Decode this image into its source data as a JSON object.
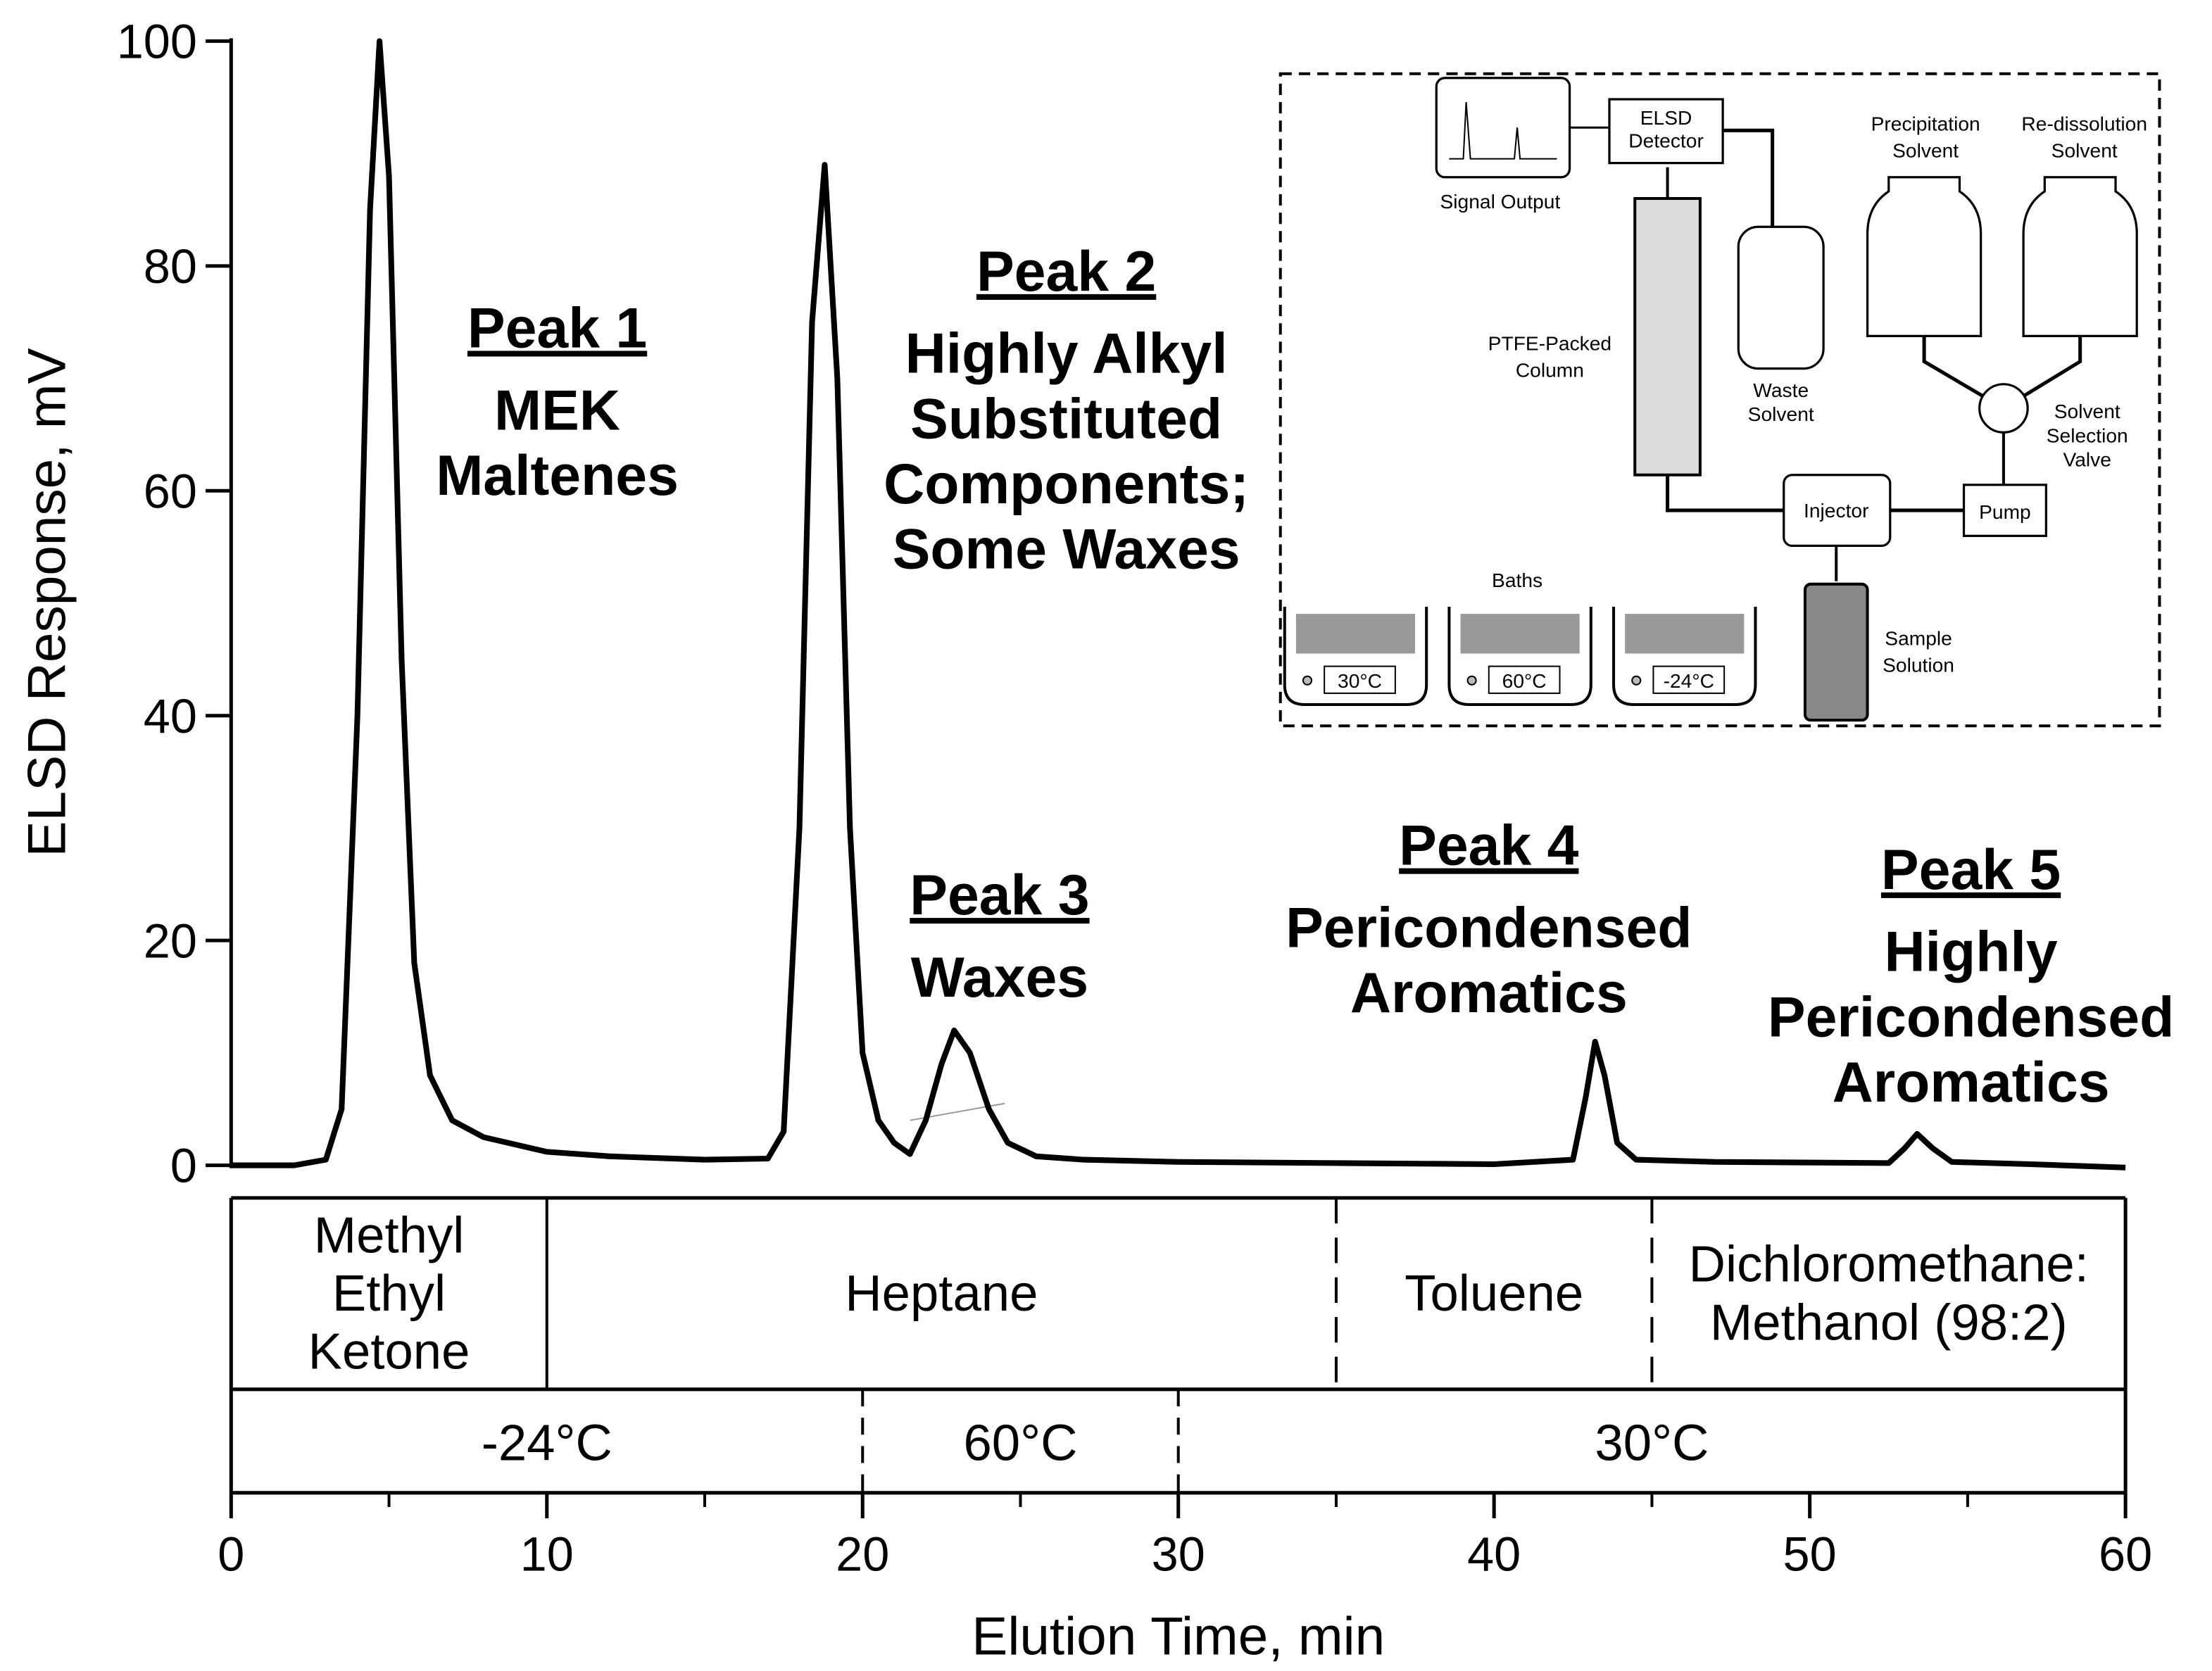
{
  "chart_data": {
    "type": "line",
    "y_label": "ELSD Response, mV",
    "x_label": "Elution Time, min",
    "xlim": [
      0,
      60
    ],
    "xticks": [
      0,
      10,
      20,
      30,
      40,
      50,
      60
    ],
    "xminorticks": [
      5,
      15,
      25,
      35,
      45,
      55
    ],
    "ylim": [
      0,
      100
    ],
    "yticks": [
      0,
      20,
      40,
      60,
      80,
      100
    ],
    "color": "#000000",
    "x": [
      0,
      2,
      3,
      3.5,
      4,
      4.4,
      4.7,
      5.0,
      5.4,
      5.8,
      6.3,
      7,
      8,
      10,
      12,
      15,
      17,
      17.5,
      18,
      18.4,
      18.8,
      19.2,
      19.6,
      20,
      20.5,
      21,
      21.5,
      22,
      22.5,
      22.9,
      23.4,
      24,
      24.6,
      25.5,
      27,
      30,
      35,
      40,
      42.5,
      42.9,
      43.2,
      43.5,
      43.9,
      44.5,
      47,
      52.5,
      53,
      53.4,
      53.9,
      54.5,
      57,
      60
    ],
    "values": [
      0,
      0,
      0.5,
      5,
      40,
      85,
      100,
      88,
      45,
      18,
      8,
      4,
      2.5,
      1.2,
      0.8,
      0.5,
      0.6,
      3,
      30,
      75,
      89,
      70,
      30,
      10,
      4,
      2,
      1,
      4,
      9,
      12,
      10,
      5,
      2,
      0.8,
      0.5,
      0.3,
      0.2,
      0.1,
      0.5,
      6,
      11,
      8,
      2,
      0.5,
      0.3,
      0.2,
      1.5,
      2.8,
      1.5,
      0.3,
      0.1,
      -0.2
    ],
    "annotations": [
      {
        "title": "Peak 1",
        "lines": [
          "MEK",
          "Maltenes"
        ]
      },
      {
        "title": "Peak 2",
        "lines": [
          "Highly Alkyl",
          "Substituted",
          "Components;",
          "Some Waxes"
        ]
      },
      {
        "title": "Peak 3",
        "lines": [
          "Waxes"
        ]
      },
      {
        "title": "Peak 4",
        "lines": [
          "Pericondensed",
          "Aromatics"
        ]
      },
      {
        "title": "Peak 5",
        "lines": [
          "Highly",
          "Pericondensed",
          "Aromatics"
        ]
      }
    ],
    "solvent_boundaries": [
      10,
      35,
      45
    ],
    "solvents": [
      [
        "Methyl",
        "Ethyl",
        "Ketone"
      ],
      [
        "Heptane"
      ],
      [
        "Toluene"
      ],
      [
        "Dichloromethane:",
        "Methanol (98:2)"
      ]
    ],
    "temperature_boundaries": [
      20,
      30
    ],
    "temperatures": [
      "-24°C",
      "60°C",
      "30°C"
    ],
    "inset": {
      "signal_output": "Signal Output",
      "detector": [
        "ELSD",
        "Detector"
      ],
      "precipitation": [
        "Precipitation",
        "Solvent"
      ],
      "redissolution": [
        "Re-dissolution",
        "Solvent"
      ],
      "column": [
        "PTFE-Packed",
        "Column"
      ],
      "waste": [
        "Waste",
        "Solvent"
      ],
      "valve": [
        "Solvent",
        "Selection",
        "Valve"
      ],
      "injector": "Injector",
      "pump": "Pump",
      "baths": "Baths",
      "bath_temps": [
        "30°C",
        "60°C",
        "-24°C"
      ],
      "sample": [
        "Sample",
        "Solution"
      ]
    }
  }
}
